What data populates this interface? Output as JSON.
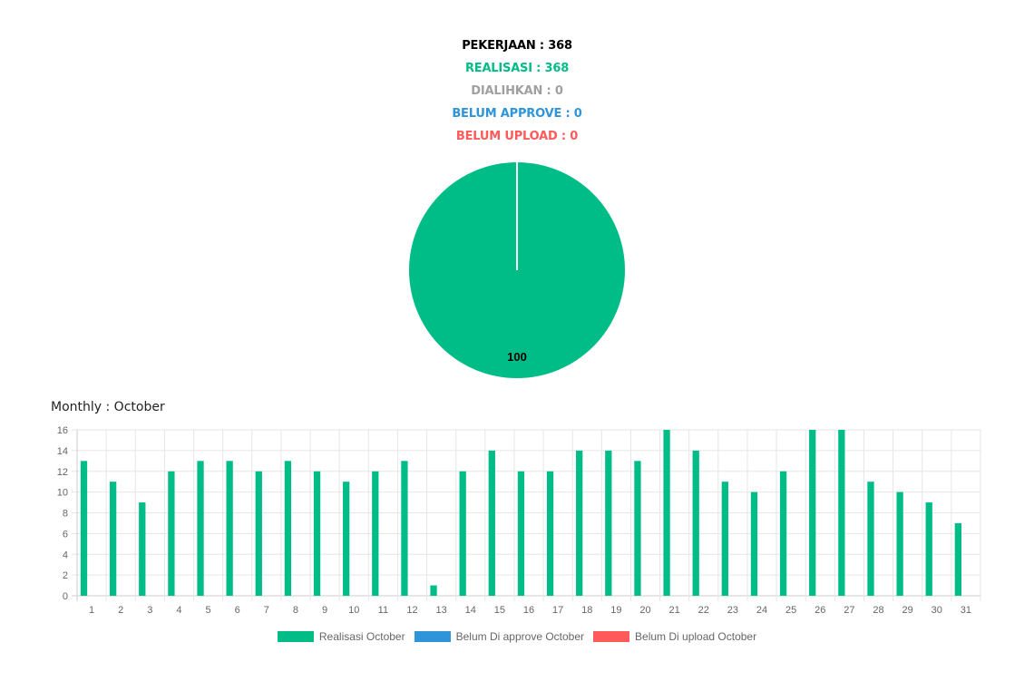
{
  "summary": {
    "pekerjaan": "PEKERJAAN : 368",
    "realisasi": "REALISASI : 368",
    "dialihkan": "DIALIHKAN : 0",
    "belum_approve": "BELUM APPROVE : 0",
    "belum_upload": "BELUM UPLOAD : 0"
  },
  "colors": {
    "pekerjaan": "#000000",
    "realisasi": "#00bd87",
    "dialihkan": "#a0a0a0",
    "belum_approve": "#2e95d8",
    "belum_upload": "#ff5a5a"
  },
  "monthly_title": "Monthly : October",
  "legend": [
    {
      "label": "Realisasi October",
      "color": "#00bd87"
    },
    {
      "label": "Belum Di approve October",
      "color": "#2e95d8"
    },
    {
      "label": "Belum Di upload October",
      "color": "#ff5a5a"
    }
  ],
  "chart_data": [
    {
      "type": "pie",
      "slices": [
        {
          "value": 100,
          "label": "100",
          "color": "#00bd87"
        }
      ]
    },
    {
      "type": "bar",
      "categories": [
        "1",
        "2",
        "3",
        "4",
        "5",
        "6",
        "7",
        "8",
        "9",
        "10",
        "11",
        "12",
        "13",
        "14",
        "15",
        "16",
        "17",
        "18",
        "19",
        "20",
        "21",
        "22",
        "23",
        "24",
        "25",
        "26",
        "27",
        "28",
        "29",
        "30",
        "31"
      ],
      "series": [
        {
          "name": "Realisasi October",
          "color": "#00bd87",
          "values": [
            13,
            11,
            9,
            12,
            13,
            13,
            12,
            13,
            12,
            11,
            12,
            13,
            1,
            12,
            14,
            12,
            12,
            14,
            14,
            13,
            16,
            14,
            11,
            10,
            12,
            16,
            16,
            11,
            10,
            9,
            7
          ]
        },
        {
          "name": "Belum Di approve October",
          "color": "#2e95d8",
          "values": [
            0,
            0,
            0,
            0,
            0,
            0,
            0,
            0,
            0,
            0,
            0,
            0,
            0,
            0,
            0,
            0,
            0,
            0,
            0,
            0,
            0,
            0,
            0,
            0,
            0,
            0,
            0,
            0,
            0,
            0,
            0
          ]
        },
        {
          "name": "Belum Di upload October",
          "color": "#ff5a5a",
          "values": [
            0,
            0,
            0,
            0,
            0,
            0,
            0,
            0,
            0,
            0,
            0,
            0,
            0,
            0,
            0,
            0,
            0,
            0,
            0,
            0,
            0,
            0,
            0,
            0,
            0,
            0,
            0,
            0,
            0,
            0,
            0
          ]
        }
      ],
      "ylim": [
        0,
        16
      ],
      "yticks": [
        "0",
        "2",
        "4",
        "6",
        "8",
        "10",
        "12",
        "14",
        "16"
      ],
      "grid": true
    }
  ]
}
